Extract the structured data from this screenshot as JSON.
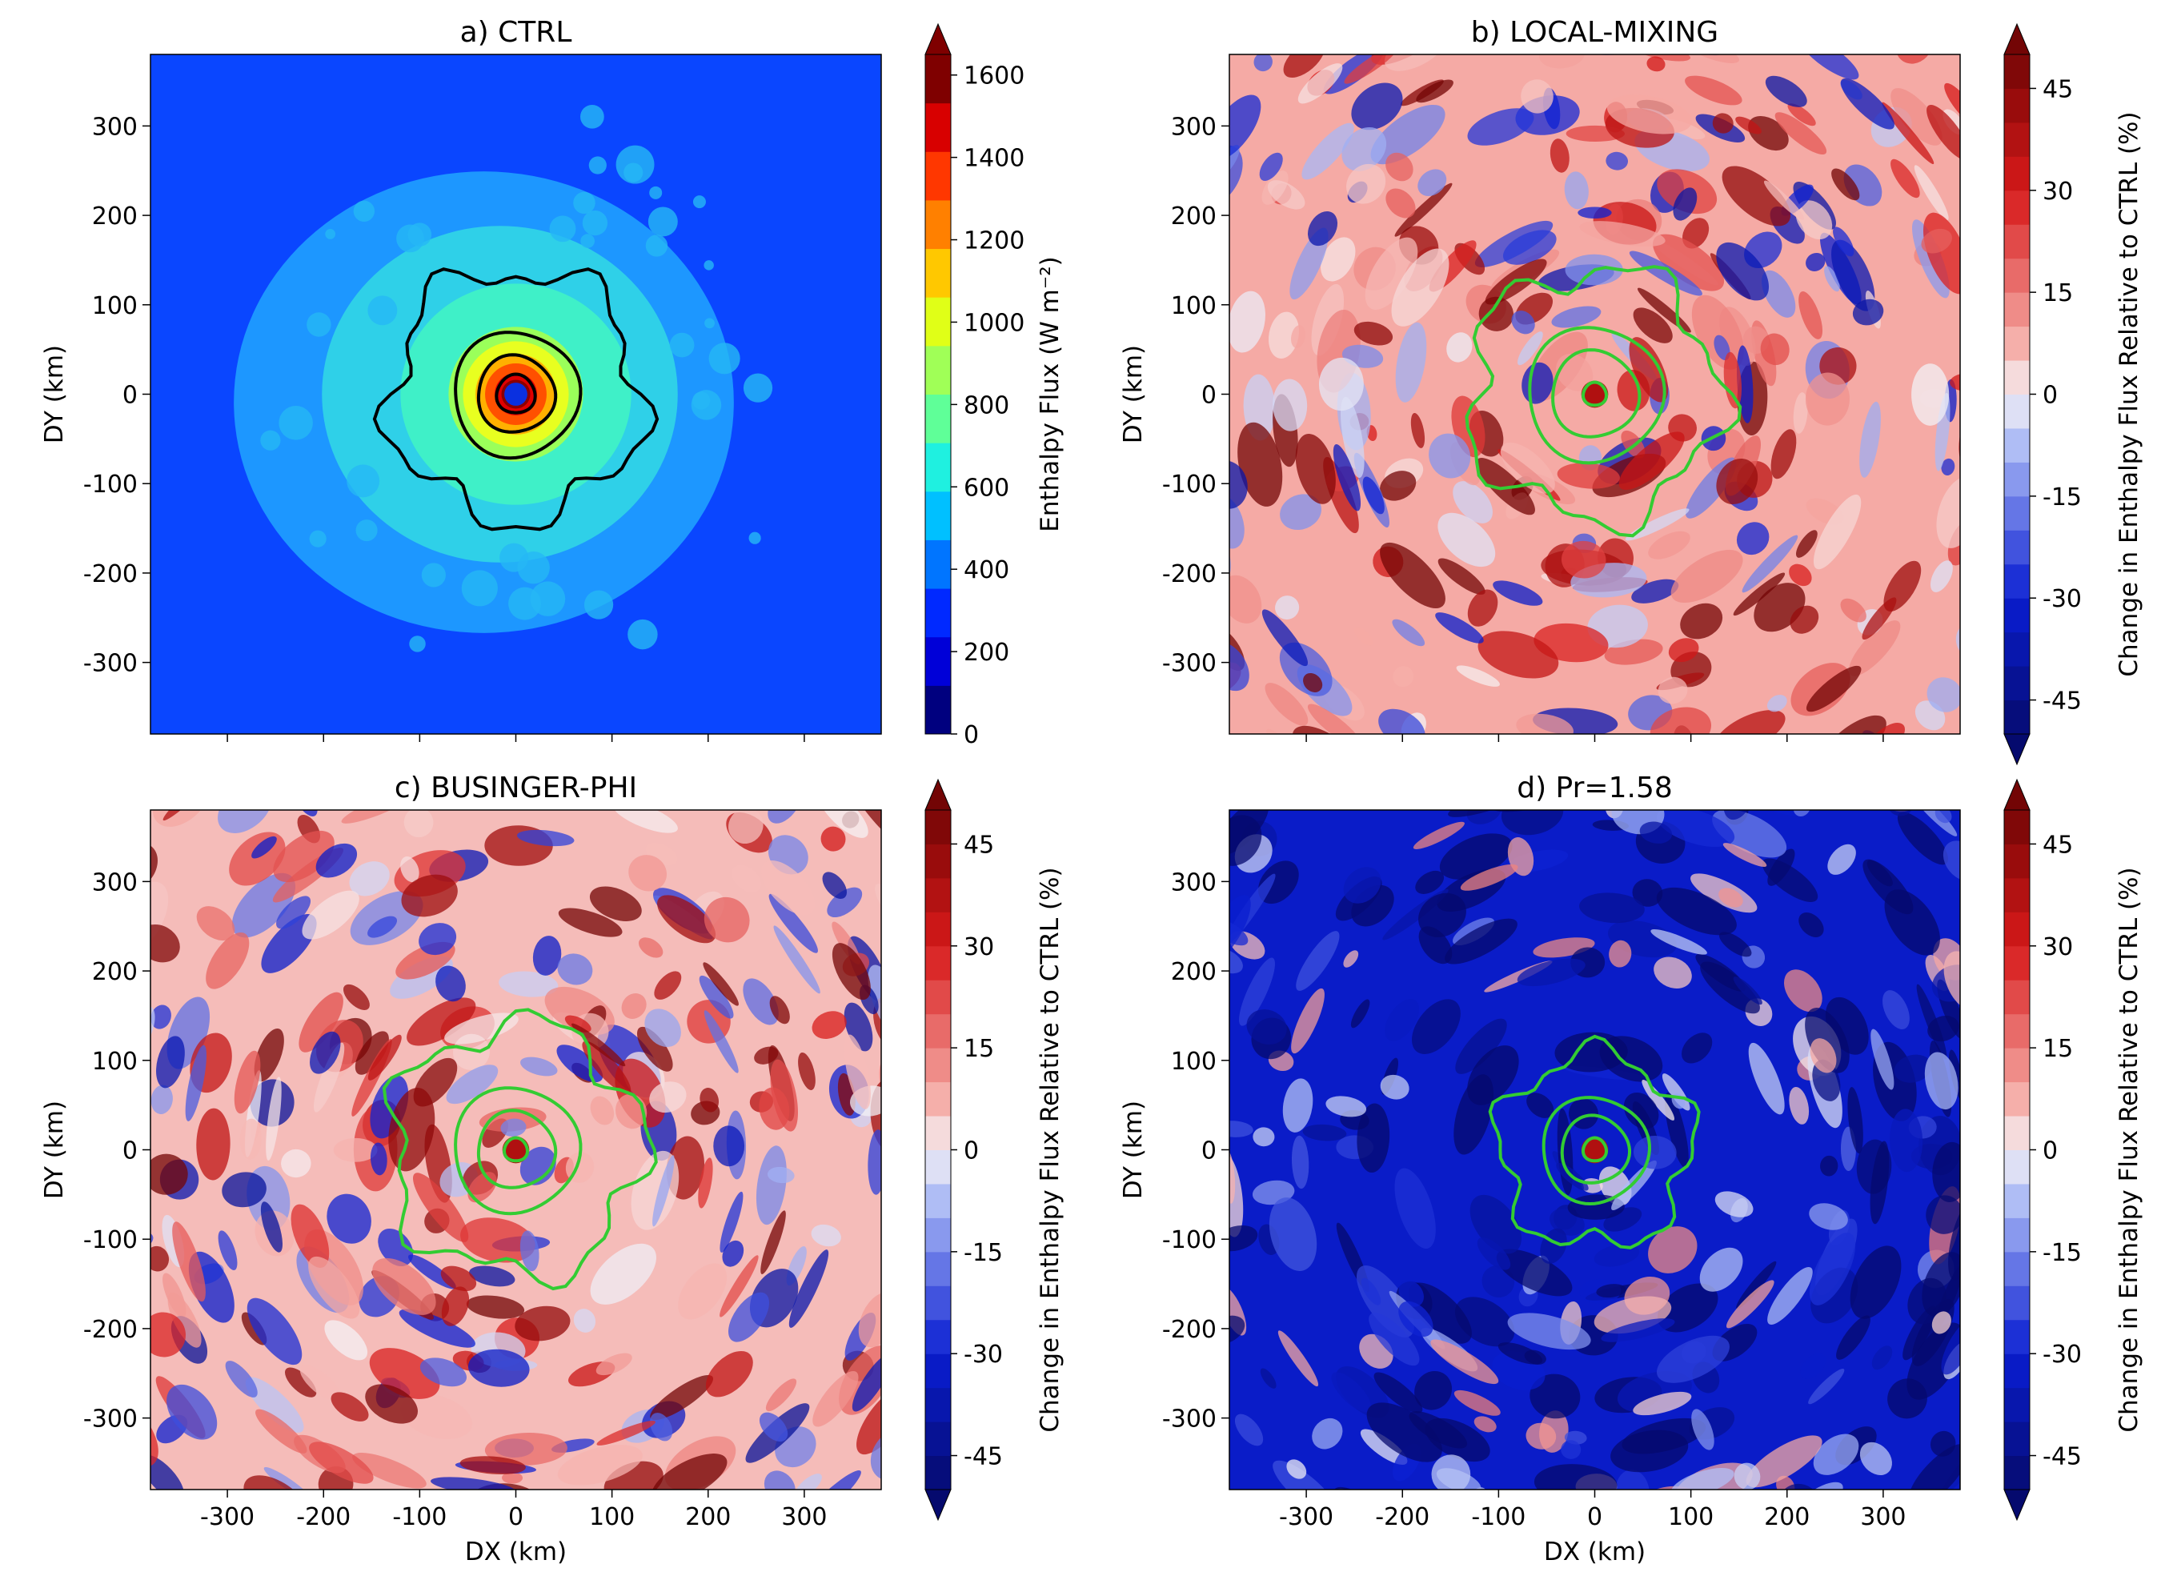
{
  "chart_data": [
    {
      "type": "heatmap",
      "panel": "a",
      "title": "a) CTRL",
      "xlabel": "",
      "ylabel": "DY (km)",
      "xlim": [
        -380,
        380
      ],
      "ylim": [
        -380,
        380
      ],
      "xticks": [
        -300,
        -200,
        -100,
        0,
        100,
        200,
        300
      ],
      "yticks": [
        300,
        200,
        100,
        0,
        -100,
        -200,
        -300
      ],
      "show_x_tick_labels": false,
      "field": "Enthalpy flux",
      "colormap": "jet",
      "colorbar": {
        "label": "Enthalpy Flux (W m⁻²)",
        "min": 0,
        "max": 1650,
        "ticks": [
          1600,
          1400,
          1200,
          1000,
          800,
          600,
          400,
          200,
          0
        ],
        "extend": "max",
        "colors": [
          "#00007f",
          "#0000d8",
          "#0029ff",
          "#0075ff",
          "#00c0ff",
          "#1ff0e0",
          "#5fff98",
          "#a0ff57",
          "#e0ff17",
          "#ffc800",
          "#ff8000",
          "#ff3700",
          "#d80000",
          "#7f0000"
        ]
      },
      "contour_color": "#000000",
      "contour_levels_radius_km": [
        20,
        40,
        65,
        130
      ],
      "eye_radius_km": 12
    },
    {
      "type": "heatmap",
      "panel": "b",
      "title": "b) LOCAL-MIXING",
      "xlabel": "",
      "ylabel": "DY (km)",
      "xlim": [
        -380,
        380
      ],
      "ylim": [
        -380,
        380
      ],
      "xticks": [
        -300,
        -200,
        -100,
        0,
        100,
        200,
        300
      ],
      "yticks": [
        300,
        200,
        100,
        0,
        -100,
        -200,
        -300
      ],
      "show_x_tick_labels": false,
      "field": "Change in enthalpy flux relative to CTRL",
      "colormap": "seismic",
      "mean_change_percent": 8,
      "colorbar": {
        "label": "Change in Enthalpy Flux Relative to CTRL (%)",
        "min": -50,
        "max": 50,
        "ticks": [
          45,
          30,
          15,
          0,
          -15,
          -30,
          -45
        ],
        "extend": "both"
      },
      "contour_color": "#33cc33",
      "contour_levels_radius_km": [
        12,
        45,
        70,
        130
      ]
    },
    {
      "type": "heatmap",
      "panel": "c",
      "title": "c) BUSINGER-PHI",
      "xlabel": "DX (km)",
      "ylabel": "DY (km)",
      "xlim": [
        -380,
        380
      ],
      "ylim": [
        -380,
        380
      ],
      "xticks": [
        -300,
        -200,
        -100,
        0,
        100,
        200,
        300
      ],
      "yticks": [
        300,
        200,
        100,
        0,
        -100,
        -200,
        -300
      ],
      "show_x_tick_labels": true,
      "field": "Change in enthalpy flux relative to CTRL",
      "colormap": "seismic",
      "mean_change_percent": 6,
      "colorbar": {
        "label": "Change in Enthalpy Flux Relative to CTRL (%)",
        "min": -50,
        "max": 50,
        "ticks": [
          45,
          30,
          15,
          0,
          -15,
          -30,
          -45
        ],
        "extend": "both"
      },
      "contour_color": "#33cc33",
      "contour_levels_radius_km": [
        12,
        40,
        65,
        130
      ]
    },
    {
      "type": "heatmap",
      "panel": "d",
      "title": "d) Pr=1.58",
      "xlabel": "DX (km)",
      "ylabel": "DY (km)",
      "xlim": [
        -380,
        380
      ],
      "ylim": [
        -380,
        380
      ],
      "xticks": [
        -300,
        -200,
        -100,
        0,
        100,
        200,
        300
      ],
      "yticks": [
        300,
        200,
        100,
        0,
        -100,
        -200,
        -300
      ],
      "show_x_tick_labels": true,
      "field": "Change in enthalpy flux relative to CTRL",
      "colormap": "seismic",
      "mean_change_percent": -32,
      "colorbar": {
        "label": "Change in Enthalpy Flux Relative to CTRL (%)",
        "min": -50,
        "max": 50,
        "ticks": [
          45,
          30,
          15,
          0,
          -15,
          -30,
          -45
        ],
        "extend": "both"
      },
      "contour_color": "#33cc33",
      "contour_levels_radius_km": [
        12,
        35,
        55,
        100
      ]
    }
  ]
}
